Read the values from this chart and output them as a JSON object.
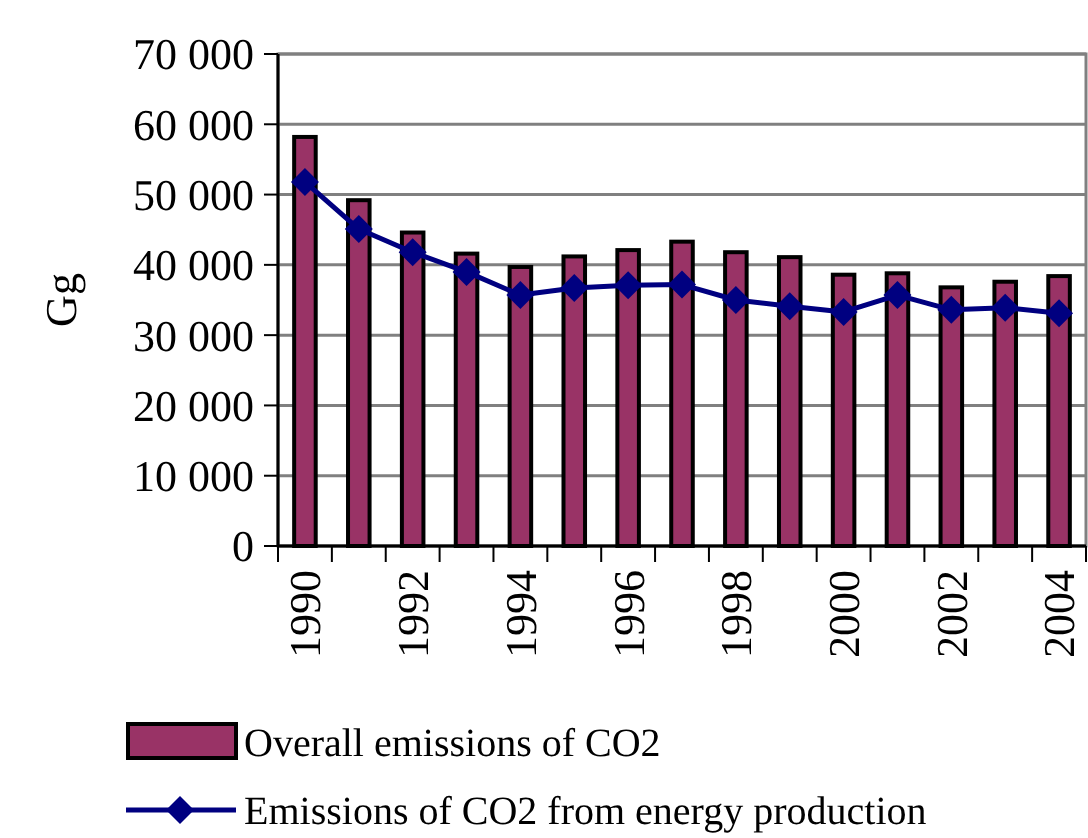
{
  "chart_data": {
    "type": "bar",
    "ylabel": "Gg",
    "categories": [
      "1990",
      null,
      "1992",
      null,
      "1994",
      null,
      "1996",
      null,
      "1998",
      null,
      "2000",
      null,
      "2002",
      null,
      "2004"
    ],
    "series": [
      {
        "name": "Overall emissions of CO2",
        "color": "#993366",
        "values": [
          58200,
          49200,
          44600,
          41600,
          39700,
          41200,
          42100,
          43300,
          41800,
          41100,
          38600,
          38800,
          36800,
          37600,
          38400
        ]
      },
      {
        "name": "Emissions of CO2 from energy production",
        "type": "line",
        "color": "#000080",
        "values": [
          51800,
          45100,
          41800,
          39000,
          35700,
          36700,
          37100,
          37200,
          35000,
          34100,
          33300,
          35700,
          33600,
          33900,
          33100
        ]
      }
    ],
    "ylim": [
      0,
      70000
    ],
    "yticks": [
      {
        "value": 0,
        "label": "0"
      },
      {
        "value": 10000,
        "label": "10 000"
      },
      {
        "value": 20000,
        "label": "20 000"
      },
      {
        "value": 30000,
        "label": "30 000"
      },
      {
        "value": 40000,
        "label": "40 000"
      },
      {
        "value": 50000,
        "label": "50 000"
      },
      {
        "value": 60000,
        "label": "60 000"
      },
      {
        "value": 70000,
        "label": "70 000"
      }
    ],
    "grid": "y",
    "legend": "bottom",
    "marker": "diamond"
  }
}
